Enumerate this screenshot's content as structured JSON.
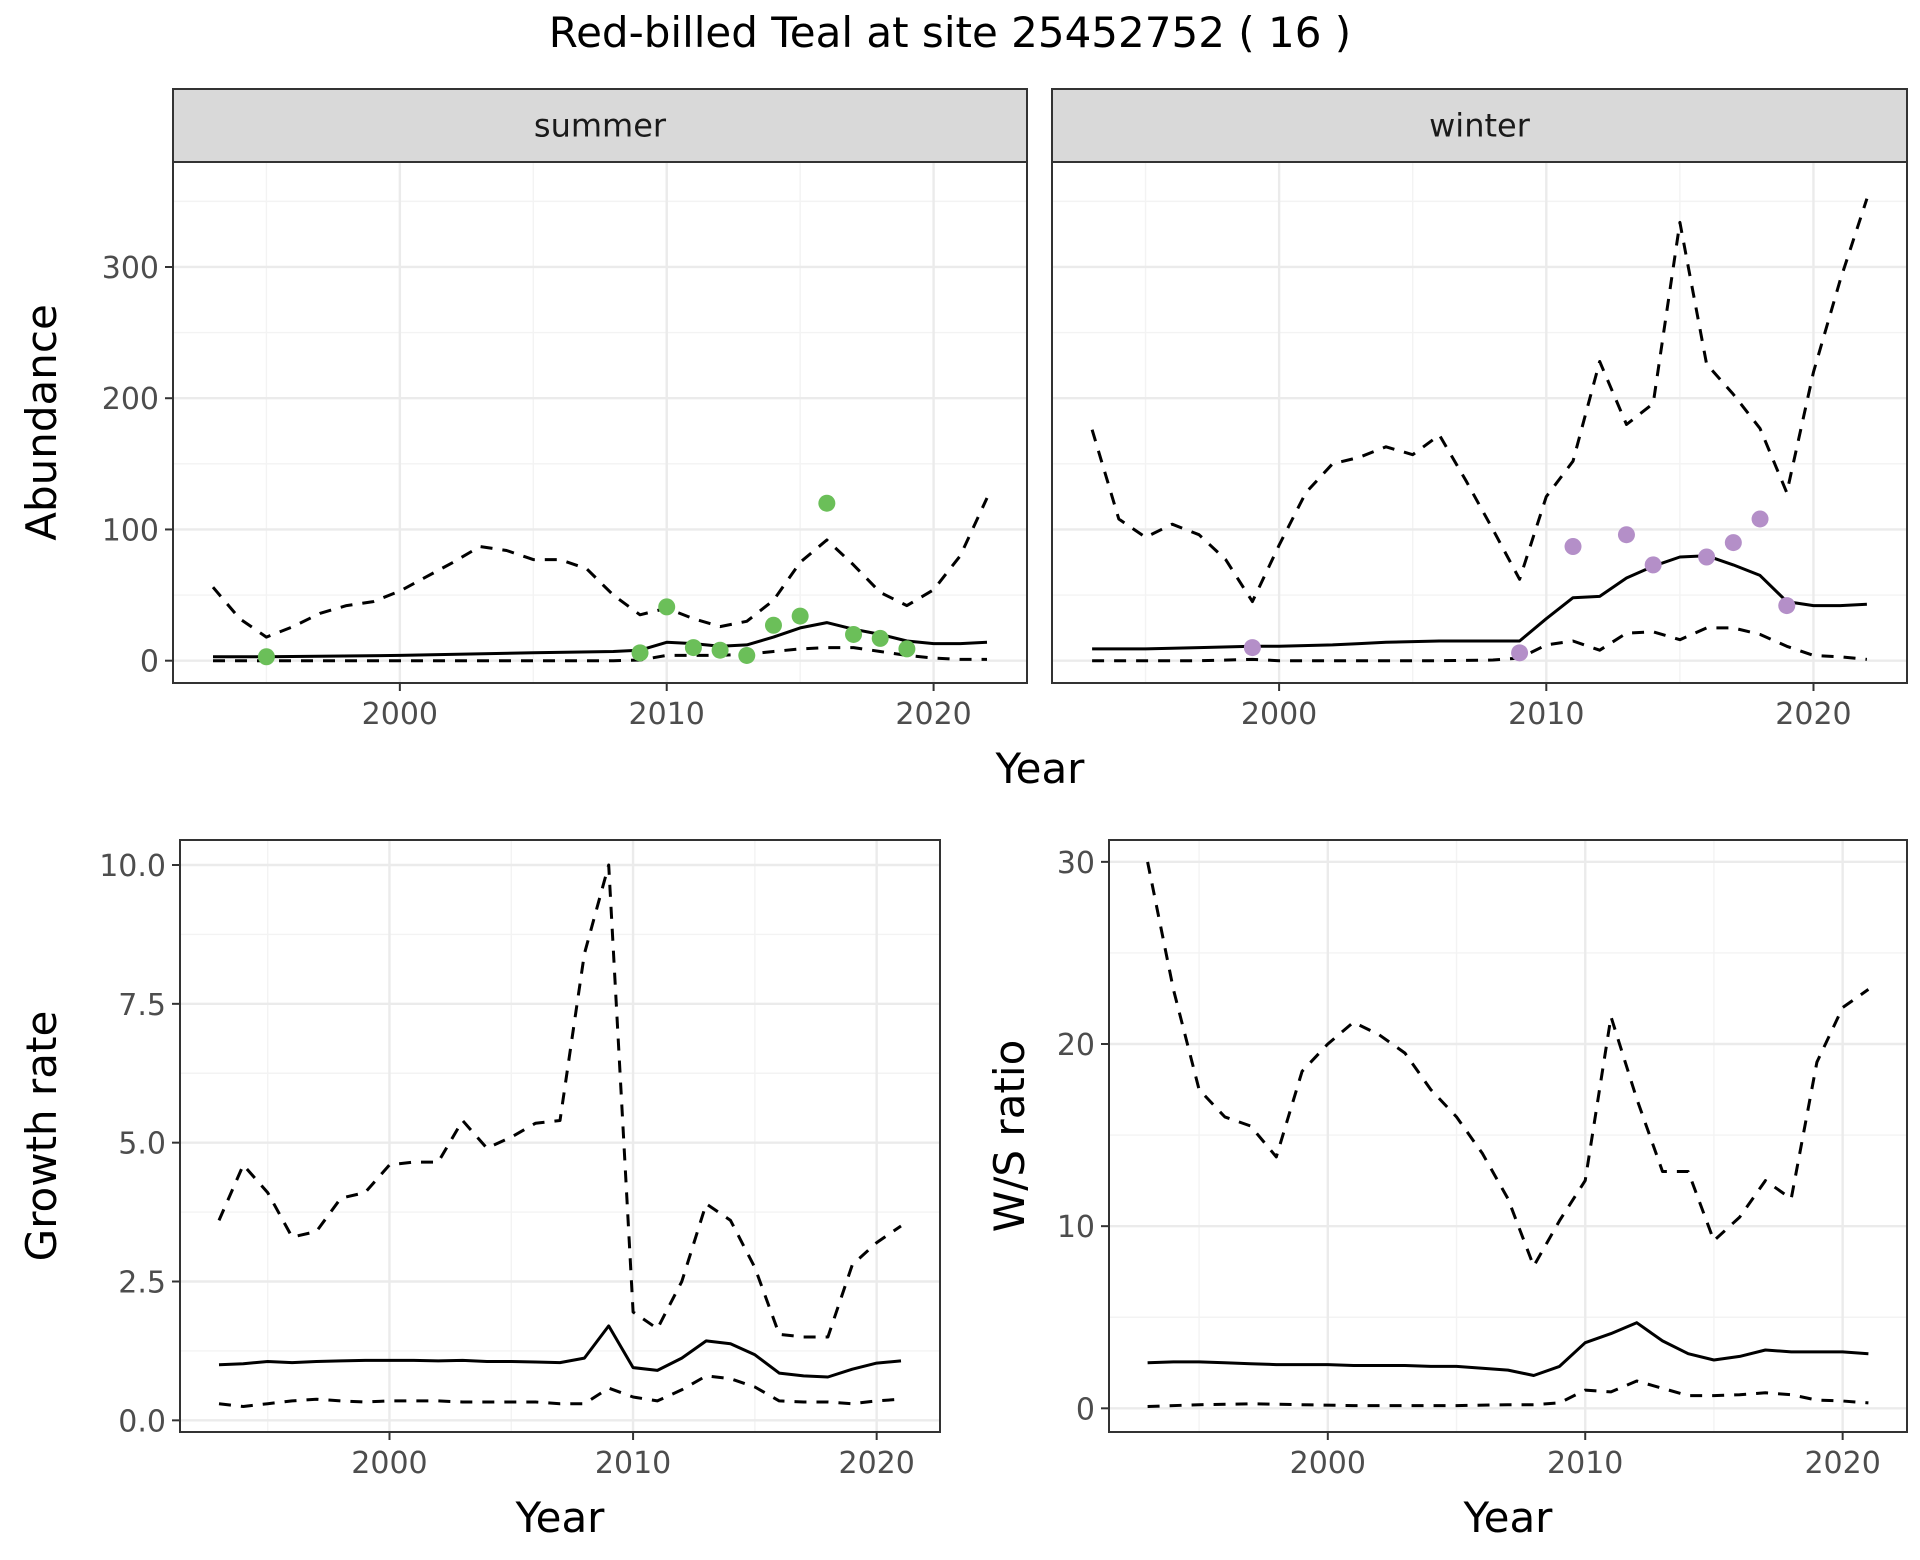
{
  "title": "Red-billed Teal at site 25452752 ( 16 )",
  "chart_data": [
    {
      "type": "line",
      "panel": "summer",
      "strip": "summer",
      "xlabel": "Year",
      "ylabel": "Abundance",
      "xlim": [
        1991.5,
        2023.5
      ],
      "ylim": [
        -17,
        380
      ],
      "xticks": [
        2000,
        2010,
        2020
      ],
      "yticks": [
        0,
        100,
        200,
        300
      ],
      "grid": true,
      "point_color": "#6bbf59",
      "series": [
        {
          "role": "estimate",
          "style": "solid",
          "x": [
            1993,
            1995,
            2000,
            2005,
            2008,
            2009,
            2010,
            2011,
            2012,
            2013,
            2014,
            2015,
            2016,
            2017,
            2018,
            2019,
            2020,
            2021,
            2022
          ],
          "y": [
            3,
            3,
            4,
            6,
            7,
            8,
            14,
            13,
            11,
            12,
            18,
            25,
            29,
            24,
            20,
            15,
            13,
            13,
            14
          ]
        },
        {
          "role": "upper",
          "style": "dashed",
          "x": [
            1993,
            1994,
            1995,
            1996,
            1997,
            1998,
            1999,
            2000,
            2001,
            2002,
            2003,
            2004,
            2005,
            2006,
            2007,
            2008,
            2009,
            2010,
            2011,
            2012,
            2013,
            2014,
            2015,
            2016,
            2017,
            2018,
            2019,
            2020,
            2021,
            2022
          ],
          "y": [
            56,
            32,
            18,
            26,
            36,
            42,
            45,
            53,
            64,
            75,
            87,
            84,
            77,
            77,
            70,
            50,
            35,
            40,
            32,
            26,
            30,
            46,
            75,
            92,
            73,
            52,
            42,
            54,
            80,
            124
          ]
        },
        {
          "role": "lower",
          "style": "dashed",
          "x": [
            1993,
            1995,
            2000,
            2005,
            2008,
            2009,
            2010,
            2012,
            2013,
            2014,
            2015,
            2016,
            2017,
            2018,
            2019,
            2020,
            2021,
            2022
          ],
          "y": [
            0,
            0,
            0,
            0,
            0,
            0.5,
            4,
            4,
            5,
            7,
            9,
            10,
            10,
            7,
            4,
            2,
            1,
            1
          ]
        },
        {
          "role": "observed",
          "style": "points",
          "x": [
            1995,
            2009,
            2010,
            2011,
            2012,
            2013,
            2014,
            2015,
            2016,
            2017,
            2018,
            2019
          ],
          "y": [
            3,
            6,
            41,
            10,
            8,
            4,
            27,
            34,
            120,
            20,
            17,
            9
          ]
        }
      ]
    },
    {
      "type": "line",
      "panel": "winter",
      "strip": "winter",
      "xlabel": "Year",
      "ylabel": "Abundance",
      "xlim": [
        1991.5,
        2023.5
      ],
      "ylim": [
        -17,
        380
      ],
      "xticks": [
        2000,
        2010,
        2020
      ],
      "yticks": [
        0,
        100,
        200,
        300
      ],
      "grid": true,
      "point_color": "#b48fc8",
      "series": [
        {
          "role": "estimate",
          "style": "solid",
          "x": [
            1993,
            1995,
            1997,
            1999,
            2000,
            2002,
            2003,
            2004,
            2006,
            2008,
            2009,
            2010,
            2011,
            2012,
            2013,
            2014,
            2015,
            2016,
            2017,
            2018,
            2019,
            2020,
            2021,
            2022
          ],
          "y": [
            9,
            9,
            10,
            11,
            11,
            12,
            13,
            14,
            15,
            15,
            15,
            32,
            48,
            49,
            63,
            72,
            79,
            80,
            73,
            65,
            45,
            42,
            42,
            43
          ]
        },
        {
          "role": "upper",
          "style": "dashed",
          "x": [
            1993,
            1994,
            1995,
            1996,
            1997,
            1998,
            1999,
            2000,
            2001,
            2002,
            2003,
            2004,
            2005,
            2006,
            2007,
            2008,
            2009,
            2010,
            2011,
            2012,
            2013,
            2014,
            2015,
            2016,
            2017,
            2018,
            2019,
            2020,
            2021,
            2022
          ],
          "y": [
            176,
            108,
            94,
            104,
            96,
            77,
            45,
            88,
            128,
            150,
            155,
            163,
            157,
            172,
            137,
            100,
            62,
            125,
            152,
            228,
            180,
            196,
            334,
            226,
            203,
            177,
            128,
            220,
            290,
            352
          ]
        },
        {
          "role": "lower",
          "style": "dashed",
          "x": [
            1993,
            1995,
            1997,
            1999,
            2000,
            2002,
            2004,
            2006,
            2008,
            2009,
            2010,
            2011,
            2012,
            2013,
            2014,
            2015,
            2016,
            2017,
            2018,
            2019,
            2020,
            2021,
            2022
          ],
          "y": [
            0,
            0,
            0,
            1,
            0,
            0,
            0,
            0,
            0.5,
            2,
            12,
            15,
            8,
            21,
            22,
            16,
            25,
            25,
            20,
            11,
            4,
            3,
            1
          ]
        },
        {
          "role": "observed",
          "style": "points",
          "x": [
            1999,
            2009,
            2011,
            2013,
            2014,
            2016,
            2017,
            2018,
            2019
          ],
          "y": [
            10,
            6,
            87,
            96,
            73,
            79,
            90,
            108,
            42
          ]
        }
      ]
    },
    {
      "type": "line",
      "panel": "growth",
      "xlabel": "Year",
      "ylabel": "Growth rate",
      "xlim": [
        1991.4,
        2022.6
      ],
      "ylim": [
        -0.21,
        10.45
      ],
      "xticks": [
        2000,
        2010,
        2020
      ],
      "yticks": [
        0.0,
        2.5,
        5.0,
        7.5,
        10.0
      ],
      "ytick_labels": [
        "0.0",
        "2.5",
        "5.0",
        "7.5",
        "10.0"
      ],
      "grid": true,
      "series": [
        {
          "role": "estimate",
          "style": "solid",
          "x": [
            1993,
            1994,
            1995,
            1996,
            1997,
            1998,
            1999,
            2000,
            2001,
            2002,
            2003,
            2004,
            2005,
            2006,
            2007,
            2008,
            2009,
            2010,
            2011,
            2012,
            2013,
            2014,
            2015,
            2016,
            2017,
            2018,
            2019,
            2020,
            2021
          ],
          "y": [
            1.0,
            1.02,
            1.06,
            1.04,
            1.06,
            1.07,
            1.08,
            1.08,
            1.08,
            1.07,
            1.08,
            1.06,
            1.06,
            1.05,
            1.04,
            1.12,
            1.7,
            0.95,
            0.9,
            1.12,
            1.43,
            1.38,
            1.18,
            0.85,
            0.8,
            0.78,
            0.92,
            1.03,
            1.07
          ]
        },
        {
          "role": "upper",
          "style": "dashed",
          "x": [
            1993,
            1994,
            1995,
            1996,
            1997,
            1998,
            1999,
            2000,
            2001,
            2002,
            2003,
            2004,
            2005,
            2006,
            2007,
            2008,
            2009,
            2010,
            2011,
            2012,
            2013,
            2014,
            2015,
            2016,
            2017,
            2018,
            2019,
            2020,
            2021
          ],
          "y": [
            3.6,
            4.6,
            4.1,
            3.3,
            3.4,
            4.0,
            4.1,
            4.6,
            4.65,
            4.65,
            5.4,
            4.9,
            5.1,
            5.35,
            5.4,
            8.4,
            10.0,
            1.95,
            1.65,
            2.5,
            3.9,
            3.6,
            2.75,
            1.55,
            1.5,
            1.5,
            2.8,
            3.2,
            3.5
          ]
        },
        {
          "role": "lower",
          "style": "dashed",
          "x": [
            1993,
            1994,
            1995,
            1996,
            1997,
            1998,
            1999,
            2000,
            2001,
            2002,
            2003,
            2004,
            2005,
            2006,
            2007,
            2008,
            2009,
            2010,
            2011,
            2012,
            2013,
            2014,
            2015,
            2016,
            2017,
            2018,
            2019,
            2020,
            2021
          ],
          "y": [
            0.3,
            0.25,
            0.3,
            0.35,
            0.38,
            0.35,
            0.33,
            0.35,
            0.35,
            0.35,
            0.33,
            0.33,
            0.33,
            0.33,
            0.3,
            0.3,
            0.58,
            0.42,
            0.35,
            0.55,
            0.8,
            0.75,
            0.6,
            0.35,
            0.33,
            0.33,
            0.3,
            0.35,
            0.38
          ]
        }
      ]
    },
    {
      "type": "line",
      "panel": "ratio",
      "xlabel": "Year",
      "ylabel": "W/S ratio",
      "xlim": [
        1991.5,
        2022.5
      ],
      "ylim": [
        -1.3,
        31.2
      ],
      "xticks": [
        2000,
        2010,
        2020
      ],
      "yticks": [
        0,
        10,
        20,
        30
      ],
      "grid": true,
      "series": [
        {
          "role": "estimate",
          "style": "solid",
          "x": [
            1993,
            1994,
            1995,
            1996,
            1997,
            1998,
            1999,
            2000,
            2001,
            2002,
            2003,
            2004,
            2005,
            2006,
            2007,
            2008,
            2009,
            2010,
            2011,
            2012,
            2013,
            2014,
            2015,
            2016,
            2017,
            2018,
            2019,
            2020,
            2021
          ],
          "y": [
            2.5,
            2.55,
            2.55,
            2.5,
            2.45,
            2.4,
            2.4,
            2.4,
            2.35,
            2.35,
            2.35,
            2.3,
            2.3,
            2.2,
            2.1,
            1.8,
            2.3,
            3.6,
            4.1,
            4.7,
            3.7,
            3.0,
            2.65,
            2.85,
            3.2,
            3.1,
            3.1,
            3.1,
            3.0
          ]
        },
        {
          "role": "upper",
          "style": "dashed",
          "x": [
            1993,
            1994,
            1995,
            1996,
            1997,
            1998,
            1999,
            2000,
            2001,
            2002,
            2003,
            2004,
            2005,
            2006,
            2007,
            2008,
            2009,
            2010,
            2011,
            2012,
            2013,
            2014,
            2015,
            2016,
            2017,
            2018,
            2019,
            2020,
            2021
          ],
          "y": [
            30.0,
            23.0,
            17.5,
            16.0,
            15.5,
            13.8,
            18.5,
            20.0,
            21.2,
            20.5,
            19.5,
            17.5,
            16.0,
            14.0,
            11.5,
            7.8,
            10.3,
            12.5,
            21.5,
            17.0,
            13.0,
            13.0,
            9.2,
            10.5,
            12.5,
            11.5,
            19.0,
            22.0,
            23.0
          ]
        },
        {
          "role": "lower",
          "style": "dashed",
          "x": [
            1993,
            1995,
            1997,
            1999,
            2001,
            2003,
            2005,
            2007,
            2008,
            2009,
            2010,
            2011,
            2012,
            2013,
            2014,
            2015,
            2016,
            2017,
            2018,
            2019,
            2020,
            2021
          ],
          "y": [
            0.1,
            0.2,
            0.25,
            0.2,
            0.15,
            0.15,
            0.15,
            0.2,
            0.2,
            0.3,
            1.0,
            0.9,
            1.5,
            1.1,
            0.7,
            0.7,
            0.75,
            0.85,
            0.75,
            0.45,
            0.4,
            0.3
          ]
        }
      ]
    }
  ]
}
